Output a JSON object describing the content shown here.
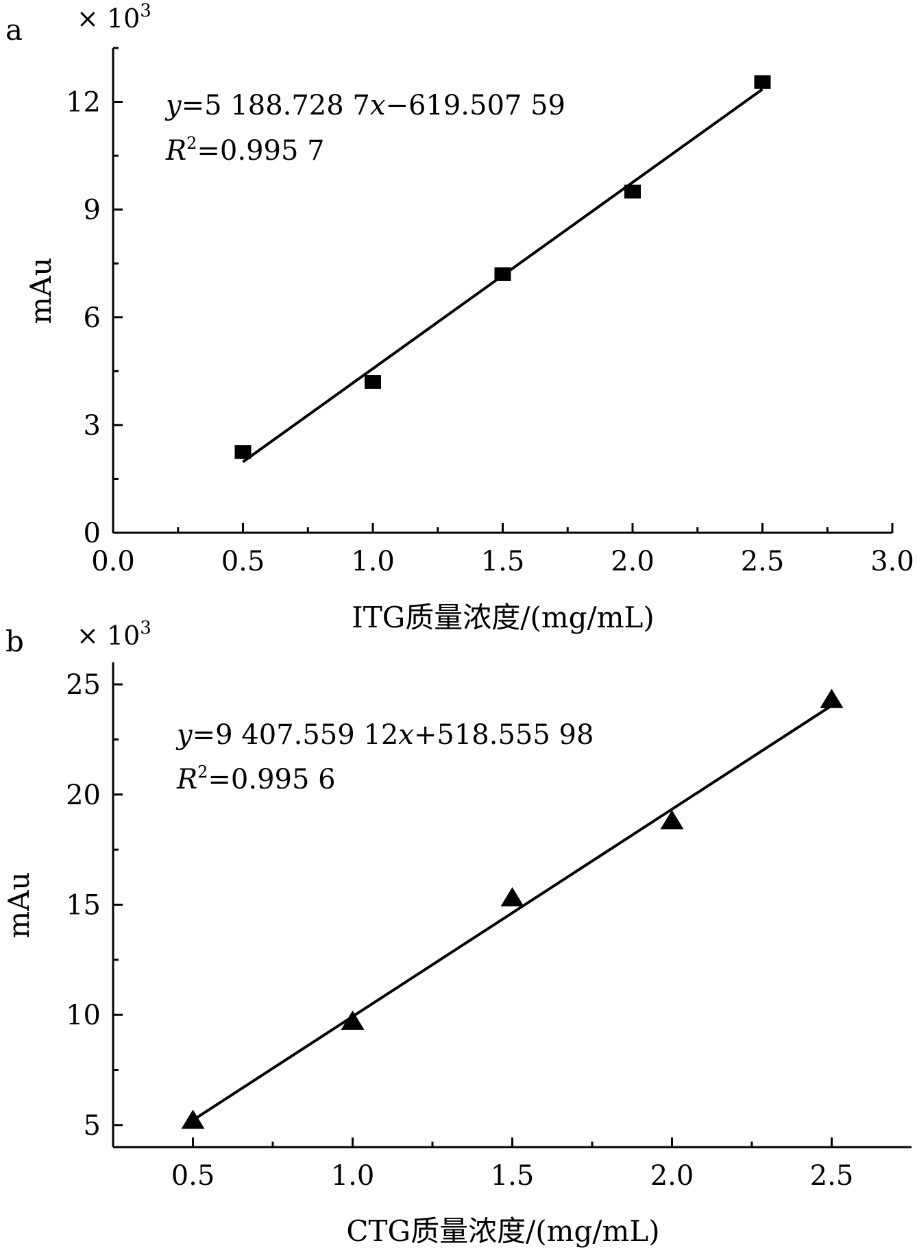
{
  "chart_data": [
    {
      "panel_label": "a",
      "type": "scatter",
      "multiplier": "× 10",
      "multiplier_exp": "3",
      "x": [
        0.5,
        1.0,
        1.5,
        2.0,
        2.5
      ],
      "y": [
        2.25,
        4.2,
        7.2,
        9.5,
        12.55
      ],
      "marker": "square",
      "fit": {
        "slope": 5.1887287,
        "intercept": -0.61950759,
        "x_range": [
          0.5,
          2.5
        ]
      },
      "equation": {
        "y": "y",
        "rhs1": "=5 188.728 7",
        "x": "x",
        "rhs2": "−619.507 59"
      },
      "r2": {
        "r": "R",
        "exp": "2",
        "value": "=0.995 7"
      },
      "xlabel": "ITG质量浓度/(mg/mL)",
      "ylabel": "mAu",
      "xlim": [
        0.0,
        3.0
      ],
      "ylim": [
        0,
        13.5
      ],
      "xticks": [
        {
          "v": 0.0,
          "label": "0.0"
        },
        {
          "v": 0.5,
          "label": "0.5"
        },
        {
          "v": 1.0,
          "label": "1.0"
        },
        {
          "v": 1.5,
          "label": "1.5"
        },
        {
          "v": 2.0,
          "label": "2.0"
        },
        {
          "v": 2.5,
          "label": "2.5"
        },
        {
          "v": 3.0,
          "label": "3.0"
        }
      ],
      "xminor": [
        0.25,
        0.75,
        1.25,
        1.75,
        2.25,
        2.75
      ],
      "yticks": [
        {
          "v": 0,
          "label": "0"
        },
        {
          "v": 3,
          "label": "3"
        },
        {
          "v": 6,
          "label": "6"
        },
        {
          "v": 9,
          "label": "9"
        },
        {
          "v": 12,
          "label": "12"
        }
      ],
      "yminor": [
        1.5,
        4.5,
        7.5,
        10.5,
        13.5
      ]
    },
    {
      "panel_label": "b",
      "type": "scatter",
      "multiplier": "× 10",
      "multiplier_exp": "3",
      "x": [
        0.5,
        1.0,
        1.5,
        2.0,
        2.5
      ],
      "y": [
        5.2,
        9.7,
        15.3,
        18.8,
        24.3
      ],
      "marker": "triangle",
      "fit": {
        "slope": 9.40755912,
        "intercept": 0.51855598,
        "x_range": [
          0.5,
          2.5
        ]
      },
      "equation": {
        "y": "y",
        "rhs1": "=9 407.559 12",
        "x": "x",
        "rhs2": "+518.555 98"
      },
      "r2": {
        "r": "R",
        "exp": "2",
        "value": "=0.995 6"
      },
      "xlabel": "CTG质量浓度/(mg/mL)",
      "ylabel": "mAu",
      "xlim": [
        0.25,
        2.75
      ],
      "ylim": [
        4.0,
        26.0
      ],
      "xticks": [
        {
          "v": 0.5,
          "label": "0.5"
        },
        {
          "v": 1.0,
          "label": "1.0"
        },
        {
          "v": 1.5,
          "label": "1.5"
        },
        {
          "v": 2.0,
          "label": "2.0"
        },
        {
          "v": 2.5,
          "label": "2.5"
        }
      ],
      "xminor": [
        0.75,
        1.25,
        1.75,
        2.25
      ],
      "yticks": [
        {
          "v": 5,
          "label": "5"
        },
        {
          "v": 10,
          "label": "10"
        },
        {
          "v": 15,
          "label": "15"
        },
        {
          "v": 20,
          "label": "20"
        },
        {
          "v": 25,
          "label": "25"
        }
      ],
      "yminor": [
        7.5,
        12.5,
        17.5,
        22.5
      ]
    }
  ]
}
